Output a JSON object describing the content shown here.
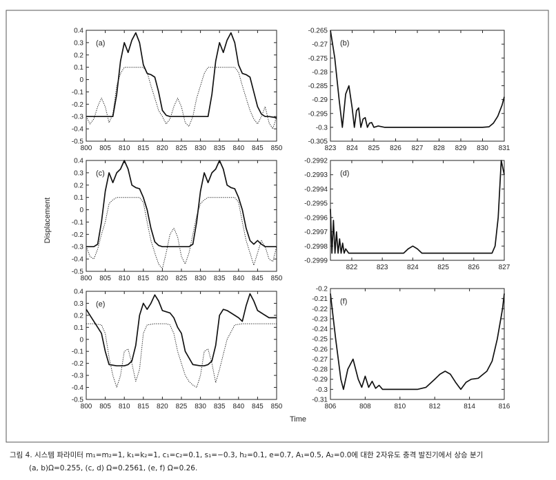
{
  "figure": {
    "xlabel": "Time",
    "ylabel": "Displacement"
  },
  "caption": {
    "line1": "그림 4. 시스템 파라미터 m₁=m₂=1, k₁=k₂=1, c₁=c₂=0.1, s₁=−0.3, h₂=0.1, e=0.7, A₁=0.5, A₂=0.0에 대한 2자유도 충격 발진기에서 상승 분기",
    "line2": "(a, b)Ω=0.255, (c, d) Ω=0.2561, (e, f) Ω=0.26."
  },
  "chart_data": [
    {
      "id": "a",
      "type": "line",
      "panel_label": "(a)",
      "xlim": [
        800,
        850
      ],
      "ylim": [
        -0.5,
        0.4
      ],
      "xticks": [
        "800",
        "805",
        "810",
        "815",
        "820",
        "825",
        "830",
        "835",
        "840",
        "845",
        "850"
      ],
      "yticks": [
        "0.4",
        "0.3",
        "0.2",
        "0.1",
        "0",
        "-0.1",
        "-0.2",
        "-0.3",
        "-0.4",
        "-0.5"
      ],
      "series": [
        {
          "style": "solid",
          "x": [
            800,
            807,
            808,
            809,
            810,
            811,
            812,
            813,
            814,
            815,
            816,
            817,
            818,
            819,
            820,
            821,
            822,
            823,
            825,
            830,
            832,
            833,
            834,
            835,
            836,
            837,
            838,
            839,
            840,
            841,
            842,
            843,
            844,
            845,
            846,
            847,
            848,
            850
          ],
          "y": [
            -0.3,
            -0.3,
            -0.12,
            0.15,
            0.3,
            0.22,
            0.32,
            0.38,
            0.3,
            0.12,
            0.05,
            0.04,
            0.02,
            -0.1,
            -0.25,
            -0.29,
            -0.3,
            -0.3,
            -0.3,
            -0.3,
            -0.3,
            -0.12,
            0.15,
            0.3,
            0.22,
            0.32,
            0.38,
            0.3,
            0.12,
            0.05,
            0.04,
            0.02,
            -0.1,
            -0.22,
            -0.28,
            -0.3,
            -0.3,
            -0.31
          ]
        },
        {
          "style": "dotted",
          "x": [
            800,
            801,
            802,
            803,
            804,
            805,
            806,
            807,
            808,
            809,
            810,
            812,
            814,
            815,
            816,
            817,
            818,
            819,
            820,
            821,
            822,
            823,
            824,
            825,
            826,
            827,
            828,
            829,
            830,
            831,
            832,
            833,
            834,
            835,
            837,
            839,
            840,
            841,
            842,
            843,
            844,
            845,
            846,
            847,
            848,
            849,
            850
          ],
          "y": [
            -0.3,
            -0.36,
            -0.32,
            -0.22,
            -0.15,
            -0.22,
            -0.35,
            -0.28,
            -0.05,
            0.05,
            0.1,
            0.1,
            0.1,
            0.1,
            0.06,
            -0.05,
            -0.15,
            -0.25,
            -0.3,
            -0.36,
            -0.32,
            -0.22,
            -0.15,
            -0.22,
            -0.35,
            -0.38,
            -0.3,
            -0.15,
            -0.05,
            0.05,
            0.1,
            0.1,
            0.1,
            0.1,
            0.1,
            0.1,
            0.06,
            -0.05,
            -0.15,
            -0.25,
            -0.32,
            -0.36,
            -0.3,
            -0.22,
            -0.35,
            -0.4,
            -0.3
          ]
        }
      ]
    },
    {
      "id": "b",
      "type": "line",
      "panel_label": "(b)",
      "xlim": [
        823,
        831
      ],
      "ylim": [
        -0.305,
        -0.265
      ],
      "xticks": [
        "823",
        "824",
        "825",
        "826",
        "827",
        "828",
        "829",
        "830",
        "831"
      ],
      "yticks": [
        "-0.265",
        "-0.27",
        "-0.275",
        "-0.28",
        "-0.285",
        "-0.29",
        "-0.295",
        "-0.3",
        "-0.305"
      ],
      "series": [
        {
          "style": "solid",
          "x": [
            823,
            823.2,
            823.4,
            823.55,
            823.7,
            823.85,
            824.0,
            824.1,
            824.2,
            824.3,
            824.4,
            824.5,
            824.6,
            824.7,
            824.8,
            824.9,
            825.0,
            825.2,
            825.5,
            826,
            828,
            830,
            830.3,
            830.5,
            830.7,
            830.9,
            831
          ],
          "y": [
            -0.265,
            -0.275,
            -0.29,
            -0.3,
            -0.288,
            -0.285,
            -0.293,
            -0.3,
            -0.294,
            -0.293,
            -0.3,
            -0.297,
            -0.2965,
            -0.3,
            -0.2985,
            -0.2983,
            -0.3,
            -0.2995,
            -0.3,
            -0.3,
            -0.3,
            -0.3,
            -0.2998,
            -0.2985,
            -0.296,
            -0.292,
            -0.289
          ]
        }
      ]
    },
    {
      "id": "c",
      "type": "line",
      "panel_label": "(c)",
      "xlim": [
        800,
        850
      ],
      "ylim": [
        -0.5,
        0.4
      ],
      "xticks": [
        "800",
        "805",
        "810",
        "815",
        "820",
        "825",
        "830",
        "835",
        "840",
        "845",
        "850"
      ],
      "yticks": [
        "0.4",
        "0.3",
        "0.2",
        "0.1",
        "0",
        "-0.1",
        "-0.2",
        "-0.3",
        "-0.4",
        "-0.5"
      ],
      "series": [
        {
          "style": "solid",
          "x": [
            800,
            802,
            803,
            804,
            805,
            806,
            807,
            808,
            809,
            810,
            811,
            812,
            813,
            814,
            815,
            816,
            817,
            818,
            819,
            820,
            825,
            827,
            828,
            829,
            830,
            831,
            832,
            833,
            834,
            835,
            836,
            837,
            838,
            839,
            840,
            841,
            842,
            843,
            844,
            845,
            846,
            847,
            848,
            850
          ],
          "y": [
            -0.3,
            -0.3,
            -0.28,
            -0.1,
            0.15,
            0.3,
            0.22,
            0.3,
            0.33,
            0.4,
            0.33,
            0.2,
            0.18,
            0.17,
            0.1,
            0.0,
            -0.15,
            -0.26,
            -0.29,
            -0.3,
            -0.3,
            -0.3,
            -0.28,
            -0.1,
            0.15,
            0.3,
            0.22,
            0.3,
            0.33,
            0.4,
            0.33,
            0.2,
            0.18,
            0.17,
            0.1,
            0.0,
            -0.15,
            -0.25,
            -0.28,
            -0.25,
            -0.28,
            -0.3,
            -0.3,
            -0.3
          ]
        },
        {
          "style": "dotted",
          "x": [
            800,
            801,
            802,
            803,
            804,
            805,
            806,
            807,
            808,
            810,
            812,
            814,
            815,
            816,
            817,
            818,
            819,
            820,
            821,
            822,
            823,
            824,
            825,
            826,
            827,
            828,
            829,
            830,
            831,
            832,
            833,
            835,
            837,
            839,
            840,
            841,
            842,
            843,
            844,
            845,
            846,
            847,
            848,
            849,
            850
          ],
          "y": [
            -0.3,
            -0.38,
            -0.4,
            -0.32,
            -0.2,
            -0.1,
            0.05,
            0.08,
            0.1,
            0.1,
            0.1,
            0.1,
            0.06,
            -0.1,
            -0.25,
            -0.35,
            -0.44,
            -0.48,
            -0.35,
            -0.2,
            -0.15,
            -0.22,
            -0.38,
            -0.44,
            -0.35,
            -0.2,
            -0.05,
            0.05,
            0.08,
            0.1,
            0.1,
            0.1,
            0.1,
            0.1,
            0.06,
            -0.1,
            -0.25,
            -0.35,
            -0.45,
            -0.35,
            -0.25,
            -0.3,
            -0.4,
            -0.42,
            -0.3
          ]
        }
      ]
    },
    {
      "id": "d",
      "type": "line",
      "panel_label": "(d)",
      "xlim": [
        821.3,
        827
      ],
      "ylim": [
        -0.2999,
        -0.2992
      ],
      "xticks": [
        "822",
        "823",
        "824",
        "825",
        "826",
        "827"
      ],
      "yticks": [
        "-0.2992",
        "-0.2993",
        "-0.2994",
        "-0.2995",
        "-0.2996",
        "-0.2997",
        "-0.2998",
        "-0.2999"
      ],
      "series": [
        {
          "style": "solid",
          "x": [
            821.3,
            821.35,
            821.4,
            821.45,
            821.5,
            821.55,
            821.6,
            821.65,
            821.7,
            821.75,
            821.8,
            821.9,
            822,
            823,
            823.7,
            823.85,
            824,
            824.15,
            824.3,
            825,
            826,
            826.6,
            826.7,
            826.8,
            826.9,
            827
          ],
          "y": [
            -0.29954,
            -0.29985,
            -0.29962,
            -0.29985,
            -0.2997,
            -0.29985,
            -0.29975,
            -0.29985,
            -0.29978,
            -0.29985,
            -0.29982,
            -0.29985,
            -0.29985,
            -0.29985,
            -0.29985,
            -0.29982,
            -0.2998,
            -0.29982,
            -0.29985,
            -0.29985,
            -0.29985,
            -0.29985,
            -0.2998,
            -0.2996,
            -0.2992,
            -0.2993
          ]
        }
      ]
    },
    {
      "id": "e",
      "type": "line",
      "panel_label": "(e)",
      "xlim": [
        800,
        850
      ],
      "ylim": [
        -0.5,
        0.4
      ],
      "xticks": [
        "800",
        "805",
        "810",
        "815",
        "820",
        "825",
        "830",
        "835",
        "840",
        "845",
        "850"
      ],
      "yticks": [
        "0.4",
        "0.3",
        "0.2",
        "0.1",
        "0",
        "-0.1",
        "-0.2",
        "-0.3",
        "-0.4",
        "-0.5"
      ],
      "series": [
        {
          "style": "solid",
          "x": [
            800,
            801,
            802,
            803,
            804,
            805,
            806,
            808,
            810,
            811,
            812,
            813,
            814,
            815,
            816,
            817,
            818,
            819,
            820,
            821,
            822,
            823,
            824,
            825,
            826,
            828,
            830,
            831,
            832,
            833,
            834,
            835,
            836,
            837,
            838,
            839,
            840,
            841,
            842,
            843,
            844,
            845,
            846,
            847,
            848,
            849,
            850
          ],
          "y": [
            0.25,
            0.2,
            0.15,
            0.1,
            0.05,
            -0.1,
            -0.21,
            -0.22,
            -0.22,
            -0.21,
            -0.18,
            -0.05,
            0.2,
            0.3,
            0.25,
            0.3,
            0.37,
            0.32,
            0.24,
            0.23,
            0.22,
            0.18,
            0.1,
            0.05,
            -0.1,
            -0.21,
            -0.22,
            -0.22,
            -0.21,
            -0.18,
            -0.05,
            0.2,
            0.25,
            0.24,
            0.22,
            0.2,
            0.18,
            0.15,
            0.28,
            0.38,
            0.32,
            0.24,
            0.22,
            0.2,
            0.18,
            0.18,
            0.18
          ]
        },
        {
          "style": "dotted",
          "x": [
            800,
            802,
            804,
            805,
            806,
            807,
            808,
            809,
            810,
            811,
            812,
            813,
            814,
            815,
            816,
            818,
            820,
            821,
            822,
            823,
            824,
            825,
            826,
            827,
            828,
            829,
            830,
            831,
            832,
            833,
            834,
            835,
            837,
            839,
            841,
            842,
            843,
            844,
            845,
            846,
            848,
            850
          ],
          "y": [
            0.13,
            0.13,
            0.12,
            0.05,
            -0.15,
            -0.3,
            -0.4,
            -0.3,
            -0.1,
            -0.08,
            -0.2,
            -0.35,
            -0.25,
            0.05,
            0.12,
            0.13,
            0.13,
            0.13,
            0.12,
            0.05,
            -0.1,
            -0.2,
            -0.3,
            -0.35,
            -0.38,
            -0.4,
            -0.3,
            -0.1,
            -0.08,
            -0.2,
            -0.36,
            -0.25,
            0.0,
            0.12,
            0.13,
            0.13,
            0.13,
            0.13,
            0.13,
            0.13,
            0.13,
            0.13
          ]
        }
      ]
    },
    {
      "id": "f",
      "type": "line",
      "panel_label": "(f)",
      "xlim": [
        806,
        816
      ],
      "ylim": [
        -0.31,
        -0.2
      ],
      "xticks": [
        "806",
        "808",
        "810",
        "812",
        "814",
        "816"
      ],
      "yticks": [
        "-0.2",
        "-0.21",
        "-0.22",
        "-0.23",
        "-0.24",
        "-0.25",
        "-0.26",
        "-0.27",
        "-0.28",
        "-0.29",
        "-0.3",
        "-0.31"
      ],
      "series": [
        {
          "style": "solid",
          "x": [
            806,
            806.3,
            806.6,
            806.75,
            807,
            807.3,
            807.6,
            807.8,
            808,
            808.2,
            808.4,
            808.6,
            808.8,
            809,
            809.5,
            811,
            811.5,
            812,
            812.3,
            812.6,
            812.9,
            813.2,
            813.5,
            813.8,
            814.1,
            814.5,
            815,
            815.3,
            815.6,
            815.9,
            816
          ],
          "y": [
            -0.205,
            -0.25,
            -0.29,
            -0.3,
            -0.28,
            -0.27,
            -0.29,
            -0.298,
            -0.287,
            -0.298,
            -0.292,
            -0.299,
            -0.296,
            -0.3,
            -0.3,
            -0.3,
            -0.298,
            -0.29,
            -0.285,
            -0.282,
            -0.285,
            -0.293,
            -0.3,
            -0.293,
            -0.29,
            -0.289,
            -0.282,
            -0.272,
            -0.25,
            -0.22,
            -0.205
          ]
        }
      ]
    }
  ]
}
